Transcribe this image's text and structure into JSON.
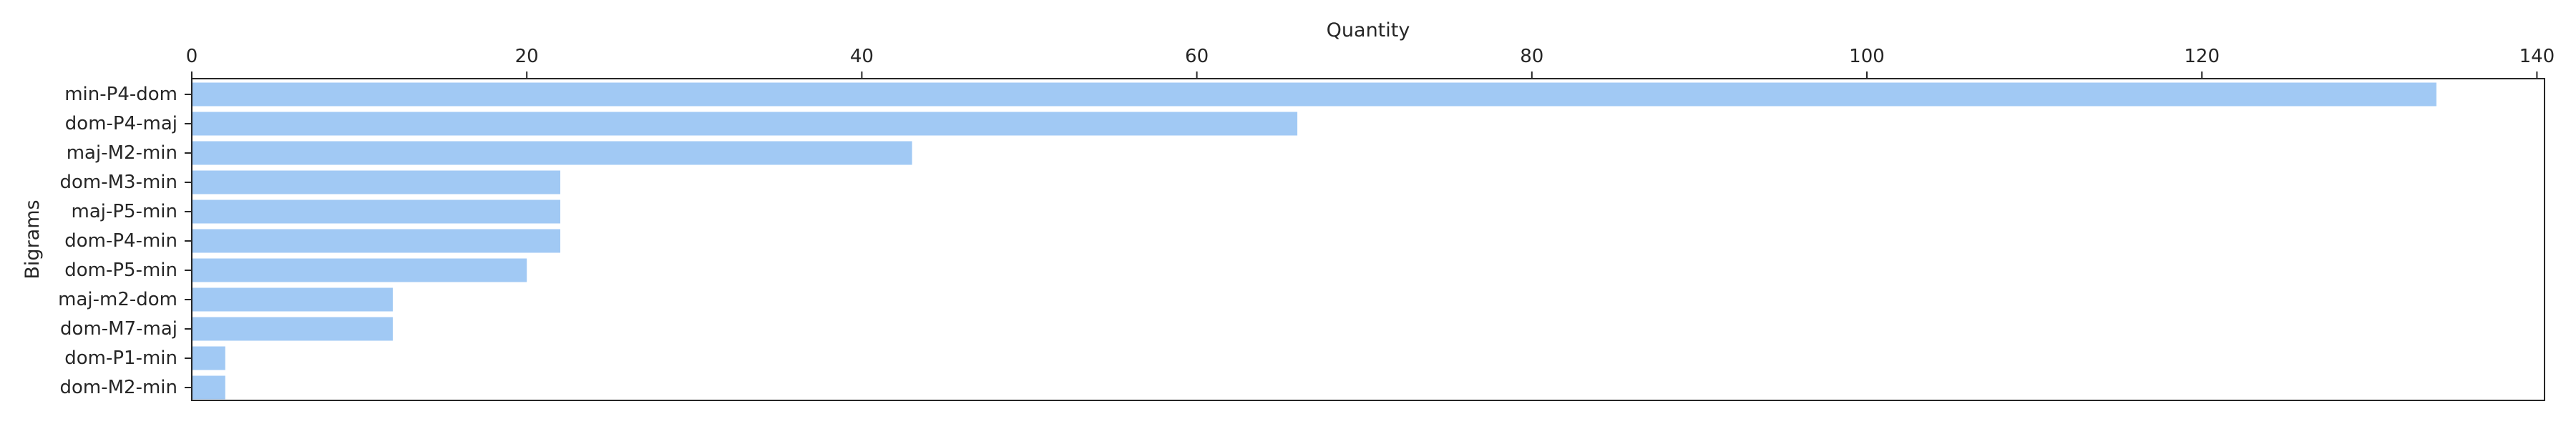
{
  "chart_data": {
    "type": "bar",
    "orientation": "horizontal",
    "xlabel": "Quantity",
    "ylabel": "Bigrams",
    "xaxis_position": "top",
    "xlim": [
      0,
      140.5
    ],
    "xticks": [
      0,
      20,
      40,
      60,
      80,
      100,
      120,
      140
    ],
    "categories": [
      "min-P4-dom",
      "dom-P4-maj",
      "maj-M2-min",
      "dom-M3-min",
      "maj-P5-min",
      "dom-P4-min",
      "dom-P5-min",
      "maj-m2-dom",
      "dom-M7-maj",
      "dom-P1-min",
      "dom-M2-min"
    ],
    "values": [
      134,
      66,
      43,
      22,
      22,
      22,
      20,
      12,
      12,
      2,
      2
    ],
    "bar_color": "#a1c9f4",
    "grid": false,
    "legend": "none"
  }
}
